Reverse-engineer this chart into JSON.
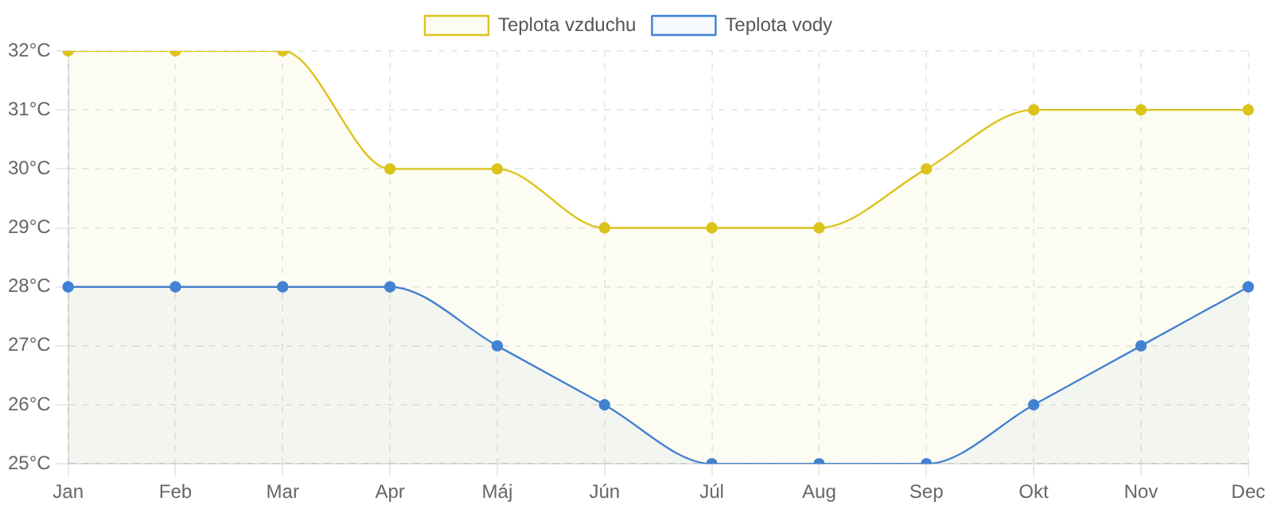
{
  "chart_data": {
    "type": "area",
    "categories": [
      "Jan",
      "Feb",
      "Mar",
      "Apr",
      "Máj",
      "Jún",
      "Júl",
      "Aug",
      "Sep",
      "Okt",
      "Nov",
      "Dec"
    ],
    "series": [
      {
        "name": "Teplota vzduchu",
        "color": "#dcc31a",
        "values": [
          32,
          32,
          32,
          30,
          30,
          29,
          29,
          29,
          30,
          31,
          31,
          31
        ]
      },
      {
        "name": "Teplota vody",
        "color": "#3c7fdb",
        "values": [
          28,
          28,
          28,
          28,
          27,
          26,
          25,
          25,
          25,
          26,
          27,
          28
        ]
      }
    ],
    "ylim": [
      25,
      32
    ],
    "yticks": [
      {
        "value": 25,
        "label": "25°C"
      },
      {
        "value": 26,
        "label": "26°C"
      },
      {
        "value": 27,
        "label": "27°C"
      },
      {
        "value": 28,
        "label": "28°C"
      },
      {
        "value": 29,
        "label": "29°C"
      },
      {
        "value": 30,
        "label": "30°C"
      },
      {
        "value": 31,
        "label": "31°C"
      },
      {
        "value": 32,
        "label": "32°C"
      }
    ],
    "grid": true,
    "legend": "top",
    "marker": "circle",
    "line_style": "solid"
  }
}
